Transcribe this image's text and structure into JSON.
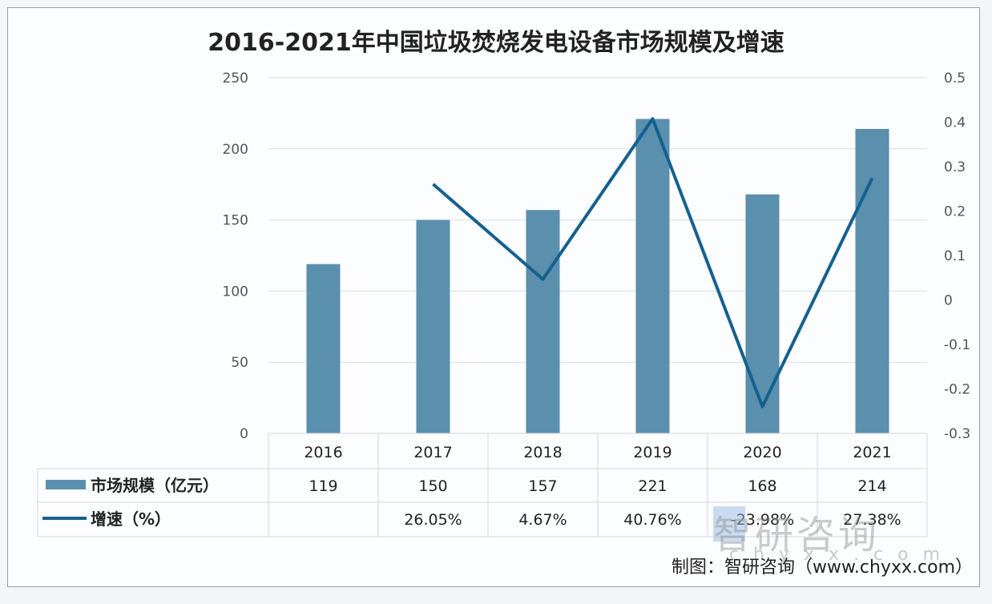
{
  "chart_data": {
    "type": "bar+line",
    "title": "2016-2021年中国垃圾焚烧发电设备市场规模及增速",
    "categories": [
      "2016",
      "2017",
      "2018",
      "2019",
      "2020",
      "2021"
    ],
    "series": [
      {
        "name": "市场规模（亿元）",
        "type": "bar",
        "axis": "left",
        "values": [
          119,
          150,
          157,
          221,
          168,
          214
        ],
        "color": "#5b8fae"
      },
      {
        "name": "增速（%）",
        "type": "line",
        "axis": "right",
        "values": [
          null,
          0.2605,
          0.0467,
          0.4076,
          -0.2398,
          0.2738
        ],
        "color": "#14618e"
      }
    ],
    "left_axis": {
      "ylim": [
        0,
        250
      ],
      "ticks": [
        "0",
        "50",
        "100",
        "150",
        "200",
        "250"
      ]
    },
    "right_axis": {
      "ylim": [
        -0.3,
        0.5
      ],
      "ticks": [
        "-0.3",
        "-0.2",
        "-0.1",
        "0",
        "0.1",
        "0.2",
        "0.3",
        "0.4",
        "0.5"
      ]
    },
    "table": {
      "rows": [
        {
          "label": "市场规模（亿元）",
          "cells": [
            "119",
            "150",
            "157",
            "221",
            "168",
            "214"
          ]
        },
        {
          "label": "增速（%）",
          "cells": [
            "",
            "26.05%",
            "4.67%",
            "40.76%",
            "-23.98%",
            "27.38%"
          ]
        }
      ]
    },
    "grid": true,
    "legend": "data-table"
  },
  "credit": "制图：智研咨询（www.chyxx.com）",
  "watermark": {
    "text": "智研咨询",
    "url": "chyxx.com"
  }
}
